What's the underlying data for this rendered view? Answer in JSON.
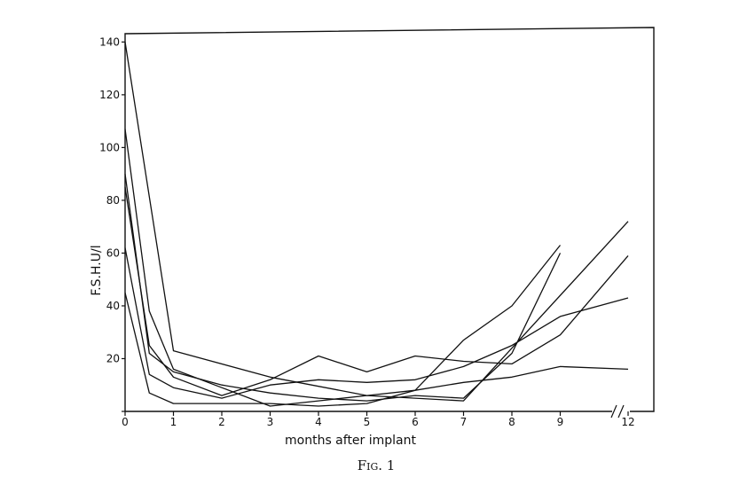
{
  "chart_data": {
    "type": "line",
    "title": "",
    "xlabel": "months after implant",
    "ylabel": "F.S.H.U/l",
    "caption": "Fig. 1",
    "break_marker": "//",
    "x_ticks": [
      {
        "value": 0,
        "label": "0"
      },
      {
        "value": 1,
        "label": "1"
      },
      {
        "value": 2,
        "label": "2"
      },
      {
        "value": 3,
        "label": "3"
      },
      {
        "value": 4,
        "label": "4"
      },
      {
        "value": 5,
        "label": "5"
      },
      {
        "value": 6,
        "label": "6"
      },
      {
        "value": 7,
        "label": "7"
      },
      {
        "value": 8,
        "label": "8"
      },
      {
        "value": 9,
        "label": "9"
      },
      {
        "value": 12,
        "label": "12"
      }
    ],
    "y_ticks": [
      {
        "value": 0,
        "label": ""
      },
      {
        "value": 20,
        "label": "20"
      },
      {
        "value": 40,
        "label": "40"
      },
      {
        "value": 60,
        "label": "60"
      },
      {
        "value": 80,
        "label": "80"
      },
      {
        "value": 100,
        "label": "100"
      },
      {
        "value": 120,
        "label": "120"
      },
      {
        "value": 140,
        "label": "140"
      }
    ],
    "xlim": [
      0,
      12
    ],
    "ylim": [
      0,
      145
    ],
    "grid": false,
    "legend": "none",
    "series": [
      {
        "x": [
          0,
          1,
          3,
          5,
          7,
          12
        ],
        "y": [
          140,
          23,
          13,
          6,
          4,
          72
        ]
      },
      {
        "x": [
          0,
          0.5,
          1,
          2,
          3,
          4,
          5,
          6,
          7,
          8,
          9
        ],
        "y": [
          107,
          38,
          16,
          9,
          2,
          4,
          6,
          8,
          27,
          40,
          63
        ]
      },
      {
        "x": [
          0,
          0.5,
          1,
          2,
          3,
          4,
          5,
          6,
          7,
          8,
          9
        ],
        "y": [
          90,
          22,
          15,
          10,
          7,
          5,
          4,
          6,
          5,
          22,
          60
        ]
      },
      {
        "x": [
          0,
          0.5,
          1,
          2,
          3,
          4,
          5,
          6,
          7,
          8,
          9,
          12
        ],
        "y": [
          85,
          25,
          13,
          6,
          12,
          21,
          15,
          21,
          19,
          18,
          29,
          59
        ]
      },
      {
        "x": [
          0,
          0.5,
          1,
          2,
          3,
          4,
          5,
          6,
          7,
          8,
          9,
          12
        ],
        "y": [
          62,
          14,
          9,
          5,
          10,
          12,
          11,
          12,
          17,
          25,
          36,
          43
        ]
      },
      {
        "x": [
          0,
          0.5,
          1,
          2,
          3,
          4,
          5,
          6,
          7,
          8,
          9,
          12
        ],
        "y": [
          45,
          7,
          3,
          3,
          3,
          2,
          3,
          8,
          11,
          13,
          17,
          16
        ]
      }
    ]
  }
}
